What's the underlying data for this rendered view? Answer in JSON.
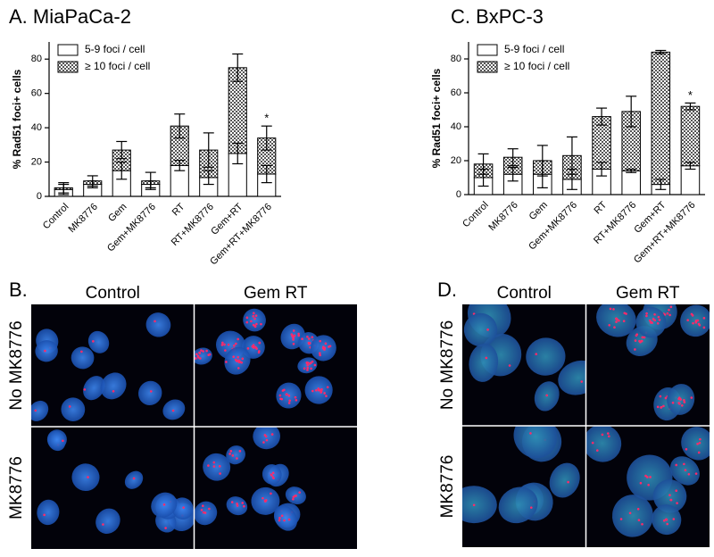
{
  "chart_data": [
    {
      "type": "stacked-bar",
      "title": "A. MiaPaCa-2",
      "y_label": "% Rad51 foci+ cells",
      "categories": [
        "Control",
        "MK8776",
        "Gem",
        "Gem+MK8776",
        "RT",
        "RT+MK8776",
        "Gem+RT",
        "Gem+RT+MK8776"
      ],
      "series": [
        {
          "name": "5-9 foci / cell",
          "color": "#ffffff",
          "values": [
            4,
            7,
            15,
            7,
            18,
            11,
            25,
            13
          ],
          "errors": [
            3,
            2,
            5,
            2,
            3,
            4,
            6,
            5
          ]
        },
        {
          "name": "≥ 10 foci / cell",
          "color": "checkered",
          "values": [
            1,
            2,
            12,
            2,
            23,
            16,
            50,
            21
          ],
          "errors": [
            3,
            3,
            5,
            5,
            7,
            10,
            8,
            7
          ]
        }
      ],
      "ylim": [
        0,
        90
      ],
      "yticks": [
        0,
        20,
        40,
        60,
        80
      ],
      "legend": "top-left",
      "annotations": [
        {
          "text": "*",
          "category": "Gem+RT+MK8776"
        }
      ]
    },
    {
      "type": "stacked-bar",
      "title": "C. BxPC-3",
      "y_label": "% Rad51 foci+ cells",
      "categories": [
        "Control",
        "MK8776",
        "Gem",
        "Gem+MK8776",
        "RT",
        "RT+MK8776",
        "Gem+RT",
        "Gem+RT+MK8776"
      ],
      "series": [
        {
          "name": "5-9 foci / cell",
          "color": "#ffffff",
          "values": [
            10,
            12,
            12,
            9,
            15,
            14,
            6,
            17
          ],
          "errors": [
            5,
            4,
            8,
            6,
            4,
            1,
            3,
            2
          ]
        },
        {
          "name": "≥ 10 foci / cell",
          "color": "checkered",
          "values": [
            8,
            10,
            8,
            14,
            31,
            35,
            78,
            35
          ],
          "errors": [
            6,
            5,
            9,
            11,
            5,
            9,
            1,
            2
          ]
        }
      ],
      "ylim": [
        0,
        90
      ],
      "yticks": [
        0,
        20,
        40,
        60,
        80
      ],
      "legend": "top-left",
      "annotations": [
        {
          "text": "*",
          "category": "Gem+RT+MK8776"
        }
      ]
    }
  ],
  "image_panels": [
    {
      "label": "B.",
      "columns": [
        "Control",
        "Gem RT"
      ],
      "rows": [
        "No MK8776",
        "MK8776"
      ]
    },
    {
      "label": "D.",
      "columns": [
        "Control",
        "Gem RT"
      ],
      "rows": [
        "No MK8776",
        "MK8776"
      ]
    }
  ]
}
